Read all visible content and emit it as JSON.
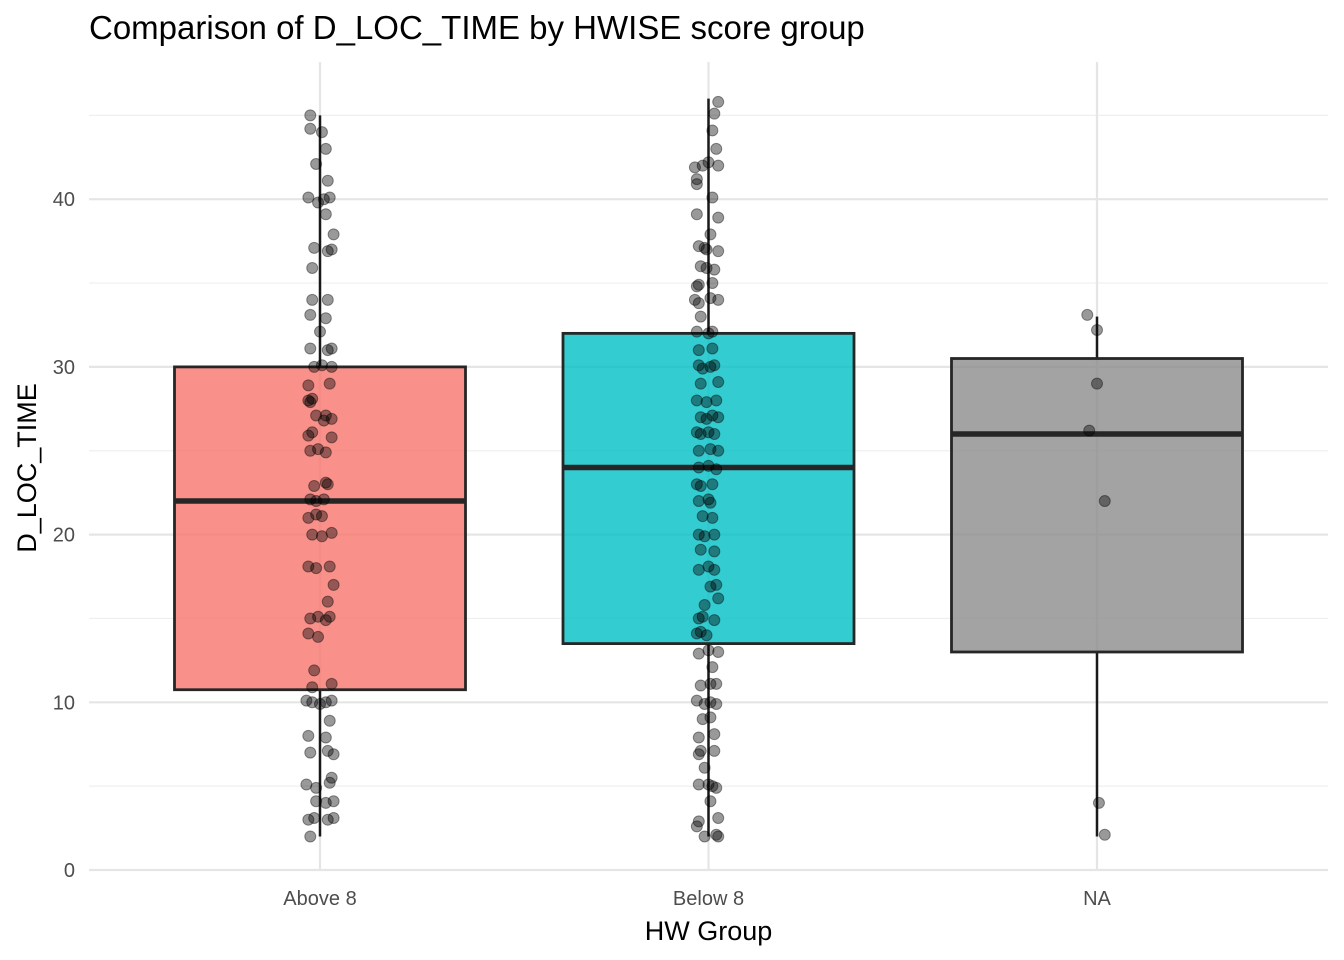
{
  "chart_data": {
    "type": "box",
    "title": "Comparison of D_LOC_TIME by HWISE score group",
    "xlabel": "HW Group",
    "ylabel": "D_LOC_TIME",
    "ylim": [
      0,
      48
    ],
    "yticks": [
      0,
      10,
      20,
      30,
      40
    ],
    "categories": [
      "Above 8",
      "Below 8",
      "NA"
    ],
    "grid": true,
    "legend": "none",
    "boxes": [
      {
        "category": "Above 8",
        "color": "#F8766D",
        "whisker_low": 2,
        "q1": 10.75,
        "median": 22,
        "q3": 30,
        "whisker_high": 45,
        "points": [
          {
            "x": -0.025,
            "y": 45
          },
          {
            "x": -0.025,
            "y": 44.2
          },
          {
            "x": 0.005,
            "y": 44
          },
          {
            "x": 0.015,
            "y": 43
          },
          {
            "x": -0.01,
            "y": 42.1
          },
          {
            "x": 0.02,
            "y": 41.1
          },
          {
            "x": -0.03,
            "y": 40.1
          },
          {
            "x": 0.01,
            "y": 40
          },
          {
            "x": 0.025,
            "y": 40.1
          },
          {
            "x": -0.005,
            "y": 39.8
          },
          {
            "x": 0.015,
            "y": 39.1
          },
          {
            "x": 0.035,
            "y": 37.9
          },
          {
            "x": -0.015,
            "y": 37.1
          },
          {
            "x": 0.02,
            "y": 36.9
          },
          {
            "x": 0.03,
            "y": 37
          },
          {
            "x": -0.02,
            "y": 35.9
          },
          {
            "x": -0.02,
            "y": 34
          },
          {
            "x": 0.02,
            "y": 34
          },
          {
            "x": -0.025,
            "y": 33.1
          },
          {
            "x": 0.015,
            "y": 32.9
          },
          {
            "x": 0.0,
            "y": 32.1
          },
          {
            "x": -0.025,
            "y": 31.1
          },
          {
            "x": 0.03,
            "y": 31.1
          },
          {
            "x": 0.02,
            "y": 31
          },
          {
            "x": -0.015,
            "y": 30
          },
          {
            "x": 0.005,
            "y": 30.1
          },
          {
            "x": 0.03,
            "y": 30
          },
          {
            "x": -0.03,
            "y": 28.9
          },
          {
            "x": 0.025,
            "y": 29
          },
          {
            "x": -0.03,
            "y": 28
          },
          {
            "x": -0.02,
            "y": 28.1
          },
          {
            "x": -0.025,
            "y": 27.9
          },
          {
            "x": -0.01,
            "y": 27.1
          },
          {
            "x": 0.015,
            "y": 27.1
          },
          {
            "x": 0.03,
            "y": 26.9
          },
          {
            "x": 0.01,
            "y": 26.8
          },
          {
            "x": -0.02,
            "y": 26.1
          },
          {
            "x": -0.03,
            "y": 25.9
          },
          {
            "x": 0.03,
            "y": 25.8
          },
          {
            "x": -0.025,
            "y": 25
          },
          {
            "x": -0.005,
            "y": 25.1
          },
          {
            "x": 0.015,
            "y": 24.9
          },
          {
            "x": 0.02,
            "y": 23
          },
          {
            "x": -0.015,
            "y": 22.9
          },
          {
            "x": 0.015,
            "y": 23.1
          },
          {
            "x": -0.025,
            "y": 22.1
          },
          {
            "x": -0.01,
            "y": 22
          },
          {
            "x": 0.01,
            "y": 22.1
          },
          {
            "x": -0.03,
            "y": 21
          },
          {
            "x": -0.01,
            "y": 21.2
          },
          {
            "x": 0.005,
            "y": 21.1
          },
          {
            "x": -0.02,
            "y": 20
          },
          {
            "x": 0.005,
            "y": 19.9
          },
          {
            "x": 0.03,
            "y": 20.1
          },
          {
            "x": -0.03,
            "y": 18.1
          },
          {
            "x": -0.01,
            "y": 18
          },
          {
            "x": 0.025,
            "y": 18.1
          },
          {
            "x": 0.035,
            "y": 17
          },
          {
            "x": 0.02,
            "y": 16
          },
          {
            "x": -0.025,
            "y": 15
          },
          {
            "x": -0.005,
            "y": 15.1
          },
          {
            "x": 0.015,
            "y": 14.9
          },
          {
            "x": 0.025,
            "y": 15.1
          },
          {
            "x": -0.03,
            "y": 14.1
          },
          {
            "x": -0.005,
            "y": 13.9
          },
          {
            "x": -0.015,
            "y": 11.9
          },
          {
            "x": 0.03,
            "y": 11.1
          },
          {
            "x": -0.02,
            "y": 10.9
          },
          {
            "x": -0.035,
            "y": 10.1
          },
          {
            "x": -0.02,
            "y": 10
          },
          {
            "x": 0.0,
            "y": 9.9
          },
          {
            "x": 0.015,
            "y": 10
          },
          {
            "x": 0.03,
            "y": 10.1
          },
          {
            "x": 0.025,
            "y": 8.9
          },
          {
            "x": -0.03,
            "y": 8
          },
          {
            "x": 0.015,
            "y": 7.9
          },
          {
            "x": -0.025,
            "y": 7
          },
          {
            "x": 0.02,
            "y": 7.1
          },
          {
            "x": 0.035,
            "y": 6.9
          },
          {
            "x": 0.03,
            "y": 5.5
          },
          {
            "x": 0.025,
            "y": 5.2
          },
          {
            "x": -0.035,
            "y": 5.1
          },
          {
            "x": -0.01,
            "y": 4.9
          },
          {
            "x": -0.01,
            "y": 4.1
          },
          {
            "x": 0.015,
            "y": 4
          },
          {
            "x": 0.035,
            "y": 4.1
          },
          {
            "x": -0.03,
            "y": 3
          },
          {
            "x": -0.015,
            "y": 3.1
          },
          {
            "x": 0.02,
            "y": 3
          },
          {
            "x": 0.035,
            "y": 3.1
          },
          {
            "x": -0.025,
            "y": 2
          }
        ]
      },
      {
        "category": "Below 8",
        "color": "#00BFC4",
        "whisker_low": 2,
        "q1": 13.5,
        "median": 24,
        "q3": 32,
        "whisker_high": 46,
        "points": [
          {
            "x": 0.025,
            "y": 45.8
          },
          {
            "x": 0.015,
            "y": 45.1
          },
          {
            "x": 0.01,
            "y": 44.1
          },
          {
            "x": 0.02,
            "y": 43
          },
          {
            "x": -0.035,
            "y": 41.9
          },
          {
            "x": -0.015,
            "y": 42
          },
          {
            "x": 0.0,
            "y": 42.2
          },
          {
            "x": 0.025,
            "y": 42
          },
          {
            "x": -0.03,
            "y": 40.9
          },
          {
            "x": -0.03,
            "y": 41.2
          },
          {
            "x": 0.01,
            "y": 40.1
          },
          {
            "x": -0.03,
            "y": 39.1
          },
          {
            "x": 0.025,
            "y": 38.9
          },
          {
            "x": 0.005,
            "y": 37.9
          },
          {
            "x": -0.025,
            "y": 37.2
          },
          {
            "x": -0.01,
            "y": 37.1
          },
          {
            "x": -0.005,
            "y": 37
          },
          {
            "x": 0.025,
            "y": 36.9
          },
          {
            "x": -0.02,
            "y": 36
          },
          {
            "x": -0.005,
            "y": 35.9
          },
          {
            "x": 0.015,
            "y": 35.8
          },
          {
            "x": -0.025,
            "y": 34.9
          },
          {
            "x": -0.03,
            "y": 34.8
          },
          {
            "x": 0.01,
            "y": 35
          },
          {
            "x": -0.035,
            "y": 34
          },
          {
            "x": -0.025,
            "y": 33.8
          },
          {
            "x": 0.005,
            "y": 34.1
          },
          {
            "x": 0.025,
            "y": 34
          },
          {
            "x": -0.02,
            "y": 33
          },
          {
            "x": -0.03,
            "y": 32.1
          },
          {
            "x": 0.0,
            "y": 32
          },
          {
            "x": 0.01,
            "y": 32.1
          },
          {
            "x": -0.025,
            "y": 31
          },
          {
            "x": 0.01,
            "y": 31.1
          },
          {
            "x": -0.025,
            "y": 30.1
          },
          {
            "x": -0.015,
            "y": 29.9
          },
          {
            "x": 0.005,
            "y": 30
          },
          {
            "x": 0.015,
            "y": 30.1
          },
          {
            "x": -0.02,
            "y": 29
          },
          {
            "x": 0.025,
            "y": 29.1
          },
          {
            "x": -0.03,
            "y": 28
          },
          {
            "x": -0.005,
            "y": 27.9
          },
          {
            "x": 0.02,
            "y": 28
          },
          {
            "x": -0.02,
            "y": 27
          },
          {
            "x": -0.005,
            "y": 26.9
          },
          {
            "x": 0.01,
            "y": 27.1
          },
          {
            "x": 0.025,
            "y": 27
          },
          {
            "x": -0.03,
            "y": 26.1
          },
          {
            "x": -0.02,
            "y": 26
          },
          {
            "x": 0.0,
            "y": 26.1
          },
          {
            "x": 0.015,
            "y": 26
          },
          {
            "x": -0.025,
            "y": 25
          },
          {
            "x": 0.005,
            "y": 25.1
          },
          {
            "x": 0.025,
            "y": 25
          },
          {
            "x": -0.025,
            "y": 24
          },
          {
            "x": 0.0,
            "y": 24.1
          },
          {
            "x": 0.02,
            "y": 23.9
          },
          {
            "x": -0.03,
            "y": 23
          },
          {
            "x": -0.02,
            "y": 22.9
          },
          {
            "x": 0.01,
            "y": 23
          },
          {
            "x": -0.025,
            "y": 22
          },
          {
            "x": 0.0,
            "y": 22.1
          },
          {
            "x": 0.005,
            "y": 21.9
          },
          {
            "x": -0.015,
            "y": 21.1
          },
          {
            "x": 0.01,
            "y": 21
          },
          {
            "x": -0.025,
            "y": 20
          },
          {
            "x": -0.01,
            "y": 19.9
          },
          {
            "x": 0.015,
            "y": 20
          },
          {
            "x": -0.02,
            "y": 19.1
          },
          {
            "x": 0.015,
            "y": 19
          },
          {
            "x": -0.025,
            "y": 17.9
          },
          {
            "x": 0.0,
            "y": 18.1
          },
          {
            "x": 0.015,
            "y": 17.9
          },
          {
            "x": 0.02,
            "y": 17
          },
          {
            "x": 0.005,
            "y": 16.9
          },
          {
            "x": 0.025,
            "y": 16.2
          },
          {
            "x": -0.01,
            "y": 15.8
          },
          {
            "x": -0.025,
            "y": 15
          },
          {
            "x": -0.015,
            "y": 15.1
          },
          {
            "x": 0.015,
            "y": 14.9
          },
          {
            "x": -0.03,
            "y": 14.1
          },
          {
            "x": -0.02,
            "y": 14.2
          },
          {
            "x": -0.005,
            "y": 14
          },
          {
            "x": 0.0,
            "y": 13.1
          },
          {
            "x": 0.025,
            "y": 13
          },
          {
            "x": -0.025,
            "y": 12.9
          },
          {
            "x": 0.01,
            "y": 12.1
          },
          {
            "x": 0.005,
            "y": 11.1
          },
          {
            "x": -0.02,
            "y": 11
          },
          {
            "x": 0.02,
            "y": 11.1
          },
          {
            "x": -0.03,
            "y": 10.1
          },
          {
            "x": -0.01,
            "y": 9.9
          },
          {
            "x": 0.005,
            "y": 10
          },
          {
            "x": 0.02,
            "y": 9.9
          },
          {
            "x": -0.015,
            "y": 9
          },
          {
            "x": 0.005,
            "y": 9.1
          },
          {
            "x": 0.015,
            "y": 8.1
          },
          {
            "x": -0.025,
            "y": 7.9
          },
          {
            "x": -0.02,
            "y": 7.1
          },
          {
            "x": 0.015,
            "y": 7.1
          },
          {
            "x": -0.025,
            "y": 6.9
          },
          {
            "x": -0.01,
            "y": 6.1
          },
          {
            "x": 0.0,
            "y": 5.1
          },
          {
            "x": 0.02,
            "y": 4.9
          },
          {
            "x": -0.025,
            "y": 5.1
          },
          {
            "x": 0.01,
            "y": 5
          },
          {
            "x": 0.005,
            "y": 4.1
          },
          {
            "x": -0.025,
            "y": 2.9
          },
          {
            "x": -0.03,
            "y": 2.6
          },
          {
            "x": 0.025,
            "y": 3.1
          },
          {
            "x": -0.01,
            "y": 2
          },
          {
            "x": 0.02,
            "y": 2.1
          },
          {
            "x": 0.025,
            "y": 2
          }
        ]
      },
      {
        "category": "NA",
        "color": "#8C8C8C",
        "whisker_low": 2,
        "q1": 13,
        "median": 26,
        "q3": 30.5,
        "whisker_high": 33,
        "points": [
          {
            "x": -0.025,
            "y": 33.1
          },
          {
            "x": 0.0,
            "y": 32.2
          },
          {
            "x": 0.0,
            "y": 29
          },
          {
            "x": -0.02,
            "y": 26.2
          },
          {
            "x": 0.02,
            "y": 22
          },
          {
            "x": 0.005,
            "y": 4
          },
          {
            "x": 0.02,
            "y": 2.1
          }
        ]
      }
    ]
  }
}
